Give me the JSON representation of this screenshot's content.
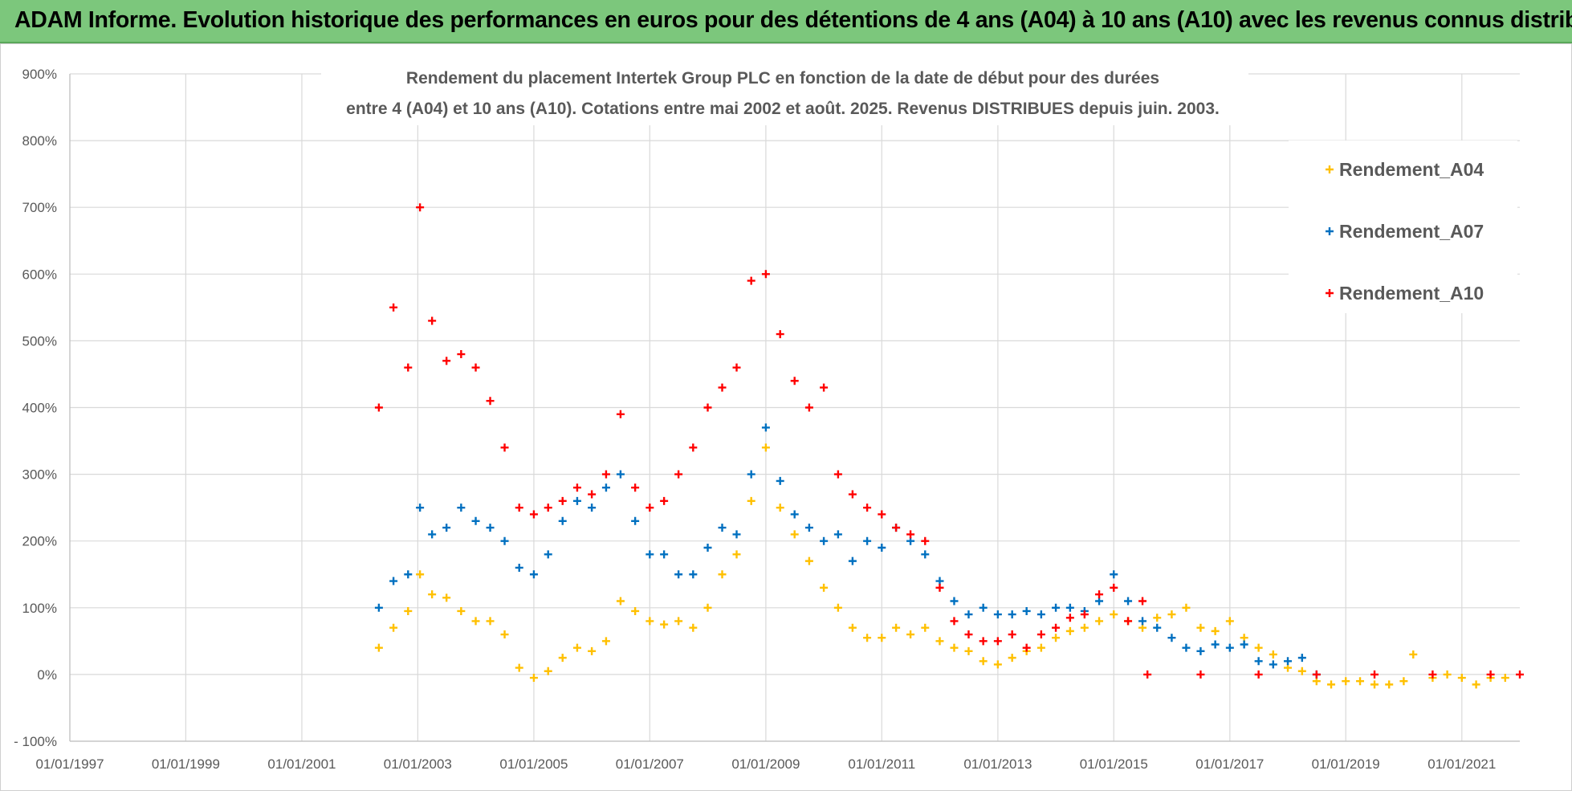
{
  "banner": {
    "title": "ADAM Informe. Evolution historique des performances en euros pour des détentions de 4 ans (A04) à 10 ans (A10) avec les revenus connus distribués"
  },
  "colors": {
    "banner_bg": "#7cc77c",
    "A04": "#ffc000",
    "A07": "#0070c0",
    "A10": "#ff0000",
    "grid": "#d9d9d9",
    "text": "#595959"
  },
  "chart_data": {
    "type": "scatter",
    "title_line1": "Rendement du placement Intertek Group PLC en fonction de la date de début pour des durées",
    "title_line2": "entre 4 (A04) et 10 ans (A10).  Cotations entre mai 2002 et août. 2025. Revenus DISTRIBUES depuis juin. 2003.",
    "xlabel": "",
    "ylabel": "",
    "marker": "+",
    "grid": true,
    "legend_position": "top-right",
    "x_range": [
      "1997-01-01",
      "2022-01-01"
    ],
    "ylim": [
      -100,
      900
    ],
    "y_ticks": [
      "- 100%",
      "0%",
      "100%",
      "200%",
      "300%",
      "400%",
      "500%",
      "600%",
      "700%",
      "800%",
      "900%"
    ],
    "x_ticks": [
      "01/01/1997",
      "01/01/1999",
      "01/01/2001",
      "01/01/2003",
      "01/01/2005",
      "01/01/2007",
      "01/01/2009",
      "01/01/2011",
      "01/01/2013",
      "01/01/2015",
      "01/01/2017",
      "01/01/2019",
      "01/01/2021"
    ],
    "series": [
      {
        "name": "Rendement_A04",
        "color": "#ffc000",
        "points": [
          [
            "2002-05-01",
            40
          ],
          [
            "2002-08-01",
            70
          ],
          [
            "2002-11-01",
            95
          ],
          [
            "2003-01-15",
            150
          ],
          [
            "2003-04-01",
            120
          ],
          [
            "2003-07-01",
            115
          ],
          [
            "2003-10-01",
            95
          ],
          [
            "2004-01-01",
            80
          ],
          [
            "2004-04-01",
            80
          ],
          [
            "2004-07-01",
            60
          ],
          [
            "2004-10-01",
            10
          ],
          [
            "2005-01-01",
            -5
          ],
          [
            "2005-04-01",
            5
          ],
          [
            "2005-07-01",
            25
          ],
          [
            "2005-10-01",
            40
          ],
          [
            "2006-01-01",
            35
          ],
          [
            "2006-04-01",
            50
          ],
          [
            "2006-07-01",
            110
          ],
          [
            "2006-10-01",
            95
          ],
          [
            "2007-01-01",
            80
          ],
          [
            "2007-04-01",
            75
          ],
          [
            "2007-07-01",
            80
          ],
          [
            "2007-10-01",
            70
          ],
          [
            "2008-01-01",
            100
          ],
          [
            "2008-04-01",
            150
          ],
          [
            "2008-07-01",
            180
          ],
          [
            "2008-10-01",
            260
          ],
          [
            "2009-01-01",
            340
          ],
          [
            "2009-04-01",
            250
          ],
          [
            "2009-07-01",
            210
          ],
          [
            "2009-10-01",
            170
          ],
          [
            "2010-01-01",
            130
          ],
          [
            "2010-04-01",
            100
          ],
          [
            "2010-07-01",
            70
          ],
          [
            "2010-10-01",
            55
          ],
          [
            "2011-01-01",
            55
          ],
          [
            "2011-04-01",
            70
          ],
          [
            "2011-07-01",
            60
          ],
          [
            "2011-10-01",
            70
          ],
          [
            "2012-01-01",
            50
          ],
          [
            "2012-04-01",
            40
          ],
          [
            "2012-07-01",
            35
          ],
          [
            "2012-10-01",
            20
          ],
          [
            "2013-01-01",
            15
          ],
          [
            "2013-04-01",
            25
          ],
          [
            "2013-07-01",
            35
          ],
          [
            "2013-10-01",
            40
          ],
          [
            "2014-01-01",
            55
          ],
          [
            "2014-04-01",
            65
          ],
          [
            "2014-07-01",
            70
          ],
          [
            "2014-10-01",
            80
          ],
          [
            "2015-01-01",
            90
          ],
          [
            "2015-04-01",
            80
          ],
          [
            "2015-07-01",
            70
          ],
          [
            "2015-10-01",
            85
          ],
          [
            "2016-01-01",
            90
          ],
          [
            "2016-04-01",
            100
          ],
          [
            "2016-07-01",
            70
          ],
          [
            "2016-10-01",
            65
          ],
          [
            "2017-01-01",
            80
          ],
          [
            "2017-04-01",
            55
          ],
          [
            "2017-07-01",
            40
          ],
          [
            "2017-10-01",
            30
          ],
          [
            "2018-01-01",
            10
          ],
          [
            "2018-04-01",
            5
          ],
          [
            "2018-07-01",
            -10
          ],
          [
            "2018-10-01",
            -15
          ],
          [
            "2019-01-01",
            -10
          ],
          [
            "2019-04-01",
            -10
          ],
          [
            "2019-07-01",
            -15
          ],
          [
            "2019-10-01",
            -15
          ],
          [
            "2020-01-01",
            -10
          ],
          [
            "2020-03-01",
            30
          ],
          [
            "2020-07-01",
            -5
          ],
          [
            "2020-10-01",
            0
          ],
          [
            "2021-01-01",
            -5
          ],
          [
            "2021-04-01",
            -15
          ],
          [
            "2021-07-01",
            -5
          ],
          [
            "2021-10-01",
            -5
          ]
        ]
      },
      {
        "name": "Rendement_A07",
        "color": "#0070c0",
        "points": [
          [
            "2002-05-01",
            100
          ],
          [
            "2002-08-01",
            140
          ],
          [
            "2002-11-01",
            150
          ],
          [
            "2003-01-15",
            250
          ],
          [
            "2003-04-01",
            210
          ],
          [
            "2003-07-01",
            220
          ],
          [
            "2003-10-01",
            250
          ],
          [
            "2004-01-01",
            230
          ],
          [
            "2004-04-01",
            220
          ],
          [
            "2004-07-01",
            200
          ],
          [
            "2004-10-01",
            160
          ],
          [
            "2005-01-01",
            150
          ],
          [
            "2005-04-01",
            180
          ],
          [
            "2005-07-01",
            230
          ],
          [
            "2005-10-01",
            260
          ],
          [
            "2006-01-01",
            250
          ],
          [
            "2006-04-01",
            280
          ],
          [
            "2006-07-01",
            300
          ],
          [
            "2006-10-01",
            230
          ],
          [
            "2007-01-01",
            180
          ],
          [
            "2007-04-01",
            180
          ],
          [
            "2007-07-01",
            150
          ],
          [
            "2007-10-01",
            150
          ],
          [
            "2008-01-01",
            190
          ],
          [
            "2008-04-01",
            220
          ],
          [
            "2008-07-01",
            210
          ],
          [
            "2008-10-01",
            300
          ],
          [
            "2009-01-01",
            370
          ],
          [
            "2009-04-01",
            290
          ],
          [
            "2009-07-01",
            240
          ],
          [
            "2009-10-01",
            220
          ],
          [
            "2010-01-01",
            200
          ],
          [
            "2010-04-01",
            210
          ],
          [
            "2010-07-01",
            170
          ],
          [
            "2010-10-01",
            200
          ],
          [
            "2011-01-01",
            190
          ],
          [
            "2011-04-01",
            220
          ],
          [
            "2011-07-01",
            200
          ],
          [
            "2011-10-01",
            180
          ],
          [
            "2012-01-01",
            140
          ],
          [
            "2012-04-01",
            110
          ],
          [
            "2012-07-01",
            90
          ],
          [
            "2012-10-01",
            100
          ],
          [
            "2013-01-01",
            90
          ],
          [
            "2013-04-01",
            90
          ],
          [
            "2013-07-01",
            95
          ],
          [
            "2013-10-01",
            90
          ],
          [
            "2014-01-01",
            100
          ],
          [
            "2014-04-01",
            100
          ],
          [
            "2014-07-01",
            95
          ],
          [
            "2014-10-01",
            110
          ],
          [
            "2015-01-01",
            150
          ],
          [
            "2015-04-01",
            110
          ],
          [
            "2015-07-01",
            80
          ],
          [
            "2015-10-01",
            70
          ],
          [
            "2016-01-01",
            55
          ],
          [
            "2016-04-01",
            40
          ],
          [
            "2016-07-01",
            35
          ],
          [
            "2016-10-01",
            45
          ],
          [
            "2017-01-01",
            40
          ],
          [
            "2017-04-01",
            45
          ],
          [
            "2017-07-01",
            20
          ],
          [
            "2017-10-01",
            15
          ],
          [
            "2018-01-01",
            20
          ],
          [
            "2018-04-01",
            25
          ],
          [
            "2018-07-01",
            0
          ]
        ]
      },
      {
        "name": "Rendement_A10",
        "color": "#ff0000",
        "points": [
          [
            "2002-05-01",
            400
          ],
          [
            "2002-08-01",
            550
          ],
          [
            "2002-11-01",
            460
          ],
          [
            "2003-01-15",
            700
          ],
          [
            "2003-04-01",
            530
          ],
          [
            "2003-07-01",
            470
          ],
          [
            "2003-10-01",
            480
          ],
          [
            "2004-01-01",
            460
          ],
          [
            "2004-04-01",
            410
          ],
          [
            "2004-07-01",
            340
          ],
          [
            "2004-10-01",
            250
          ],
          [
            "2005-01-01",
            240
          ],
          [
            "2005-04-01",
            250
          ],
          [
            "2005-07-01",
            260
          ],
          [
            "2005-10-01",
            280
          ],
          [
            "2006-01-01",
            270
          ],
          [
            "2006-04-01",
            300
          ],
          [
            "2006-07-01",
            390
          ],
          [
            "2006-10-01",
            280
          ],
          [
            "2007-01-01",
            250
          ],
          [
            "2007-04-01",
            260
          ],
          [
            "2007-07-01",
            300
          ],
          [
            "2007-10-01",
            340
          ],
          [
            "2008-01-01",
            400
          ],
          [
            "2008-04-01",
            430
          ],
          [
            "2008-07-01",
            460
          ],
          [
            "2008-10-01",
            590
          ],
          [
            "2009-01-01",
            600
          ],
          [
            "2009-04-01",
            510
          ],
          [
            "2009-07-01",
            440
          ],
          [
            "2009-10-01",
            400
          ],
          [
            "2010-01-01",
            430
          ],
          [
            "2010-04-01",
            300
          ],
          [
            "2010-07-01",
            270
          ],
          [
            "2010-10-01",
            250
          ],
          [
            "2011-01-01",
            240
          ],
          [
            "2011-04-01",
            220
          ],
          [
            "2011-07-01",
            210
          ],
          [
            "2011-10-01",
            200
          ],
          [
            "2012-01-01",
            130
          ],
          [
            "2012-04-01",
            80
          ],
          [
            "2012-07-01",
            60
          ],
          [
            "2012-10-01",
            50
          ],
          [
            "2013-01-01",
            50
          ],
          [
            "2013-04-01",
            60
          ],
          [
            "2013-07-01",
            40
          ],
          [
            "2013-10-01",
            60
          ],
          [
            "2014-01-01",
            70
          ],
          [
            "2014-04-01",
            85
          ],
          [
            "2014-07-01",
            90
          ],
          [
            "2014-10-01",
            120
          ],
          [
            "2015-01-01",
            130
          ],
          [
            "2015-04-01",
            80
          ],
          [
            "2015-07-01",
            110
          ],
          [
            "2015-08-01",
            0
          ],
          [
            "2016-07-01",
            0
          ],
          [
            "2017-07-01",
            0
          ],
          [
            "2018-07-01",
            0
          ],
          [
            "2019-07-01",
            0
          ],
          [
            "2020-07-01",
            0
          ],
          [
            "2021-07-01",
            0
          ],
          [
            "2022-01-01",
            0
          ]
        ]
      }
    ]
  }
}
